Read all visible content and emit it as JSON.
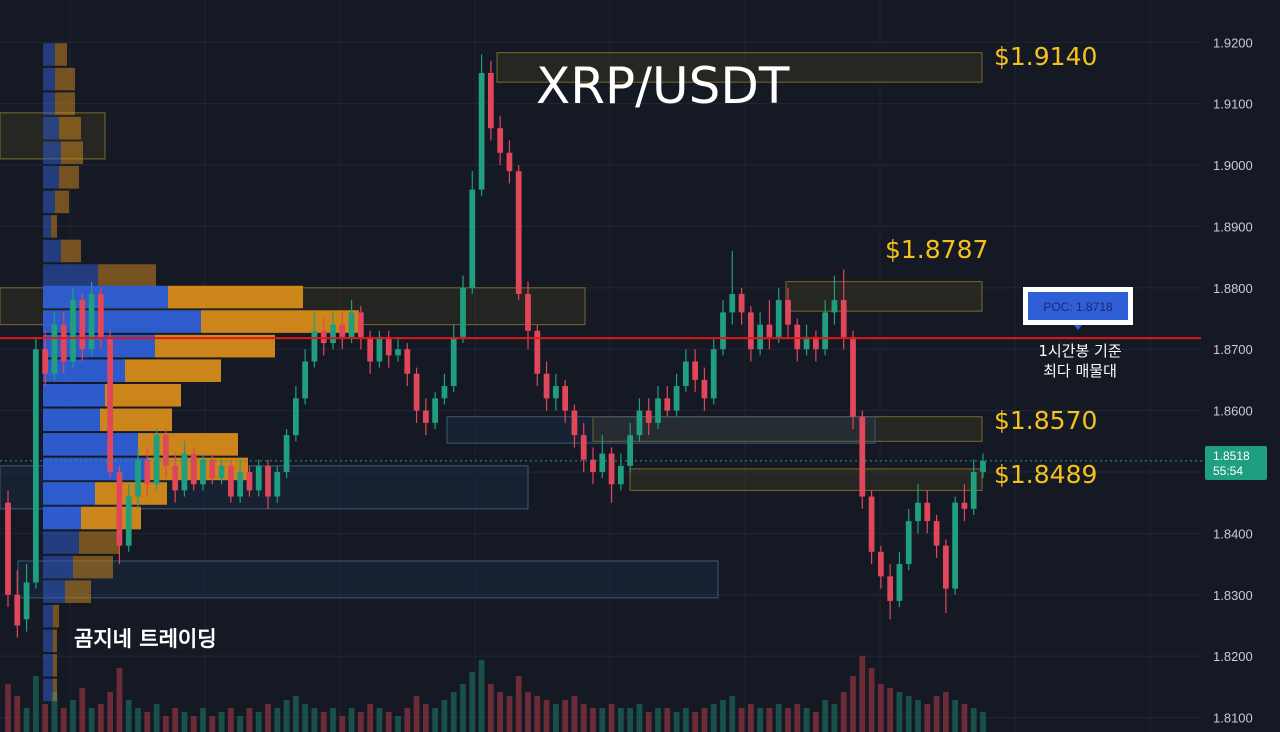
{
  "chart_data": {
    "type": "candlestick",
    "title": "XRP/USDT",
    "watermark": "곰지네 트레이딩",
    "y_ticks": [
      "1.9200",
      "1.9100",
      "1.9000",
      "1.8900",
      "1.8800",
      "1.8700",
      "1.8600",
      "1.8500",
      "1.8400",
      "1.8300",
      "1.8200",
      "1.8100"
    ],
    "ylim": [
      1.8096,
      1.9233
    ],
    "grid": true,
    "levels": [
      {
        "label": "$1.9140",
        "value": 1.914
      },
      {
        "label": "$1.8787",
        "value": 1.8787
      },
      {
        "label": "$1.8570",
        "value": 1.857
      },
      {
        "label": "$1.8489",
        "value": 1.8489
      }
    ],
    "poc": {
      "label": "POC: 1.8718",
      "value": 1.8718,
      "note_line1": "1시간봉 기준",
      "note_line2": "최다 매물대"
    },
    "current_price": {
      "price": "1.8518",
      "countdown": "55:54",
      "value": 1.8518
    },
    "candles": [
      [
        1.845,
        1.83,
        1.847,
        1.828
      ],
      [
        1.83,
        1.825,
        1.834,
        1.823
      ],
      [
        1.826,
        1.832,
        1.835,
        1.824
      ],
      [
        1.832,
        1.87,
        1.872,
        1.831
      ],
      [
        1.87,
        1.866,
        1.873,
        1.864
      ],
      [
        1.866,
        1.874,
        1.876,
        1.865
      ],
      [
        1.874,
        1.868,
        1.876,
        1.866
      ],
      [
        1.868,
        1.878,
        1.88,
        1.867
      ],
      [
        1.878,
        1.87,
        1.879,
        1.868
      ],
      [
        1.87,
        1.879,
        1.881,
        1.869
      ],
      [
        1.879,
        1.872,
        1.88,
        1.87
      ],
      [
        1.872,
        1.85,
        1.873,
        1.849
      ],
      [
        1.85,
        1.838,
        1.851,
        1.835
      ],
      [
        1.838,
        1.846,
        1.848,
        1.837
      ],
      [
        1.846,
        1.852,
        1.854,
        1.844
      ],
      [
        1.852,
        1.848,
        1.854,
        1.846
      ],
      [
        1.848,
        1.856,
        1.857,
        1.847
      ],
      [
        1.856,
        1.851,
        1.857,
        1.849
      ],
      [
        1.851,
        1.847,
        1.853,
        1.845
      ],
      [
        1.847,
        1.853,
        1.855,
        1.846
      ],
      [
        1.853,
        1.848,
        1.854,
        1.847
      ],
      [
        1.848,
        1.852,
        1.853,
        1.847
      ],
      [
        1.852,
        1.849,
        1.853,
        1.848
      ],
      [
        1.849,
        1.851,
        1.852,
        1.848
      ],
      [
        1.851,
        1.846,
        1.852,
        1.845
      ],
      [
        1.846,
        1.85,
        1.852,
        1.845
      ],
      [
        1.85,
        1.847,
        1.851,
        1.846
      ],
      [
        1.847,
        1.851,
        1.852,
        1.846
      ],
      [
        1.851,
        1.846,
        1.852,
        1.844
      ],
      [
        1.846,
        1.85,
        1.851,
        1.845
      ],
      [
        1.85,
        1.856,
        1.857,
        1.849
      ],
      [
        1.856,
        1.862,
        1.864,
        1.855
      ],
      [
        1.862,
        1.868,
        1.87,
        1.861
      ],
      [
        1.868,
        1.873,
        1.876,
        1.867
      ],
      [
        1.873,
        1.871,
        1.875,
        1.869
      ],
      [
        1.871,
        1.874,
        1.876,
        1.87
      ],
      [
        1.874,
        1.872,
        1.876,
        1.87
      ],
      [
        1.872,
        1.876,
        1.878,
        1.871
      ],
      [
        1.876,
        1.872,
        1.877,
        1.87
      ],
      [
        1.872,
        1.868,
        1.873,
        1.866
      ],
      [
        1.868,
        1.872,
        1.873,
        1.867
      ],
      [
        1.872,
        1.869,
        1.873,
        1.867
      ],
      [
        1.869,
        1.87,
        1.872,
        1.868
      ],
      [
        1.87,
        1.866,
        1.871,
        1.864
      ],
      [
        1.866,
        1.86,
        1.867,
        1.858
      ],
      [
        1.86,
        1.858,
        1.862,
        1.856
      ],
      [
        1.858,
        1.862,
        1.863,
        1.857
      ],
      [
        1.862,
        1.864,
        1.866,
        1.861
      ],
      [
        1.864,
        1.872,
        1.874,
        1.863
      ],
      [
        1.872,
        1.88,
        1.882,
        1.871
      ],
      [
        1.88,
        1.896,
        1.899,
        1.879
      ],
      [
        1.896,
        1.915,
        1.918,
        1.895
      ],
      [
        1.915,
        1.906,
        1.917,
        1.904
      ],
      [
        1.906,
        1.902,
        1.908,
        1.9
      ],
      [
        1.902,
        1.899,
        1.904,
        1.897
      ],
      [
        1.899,
        1.879,
        1.9,
        1.878
      ],
      [
        1.879,
        1.873,
        1.881,
        1.87
      ],
      [
        1.873,
        1.866,
        1.874,
        1.864
      ],
      [
        1.866,
        1.862,
        1.868,
        1.86
      ],
      [
        1.862,
        1.864,
        1.866,
        1.86
      ],
      [
        1.864,
        1.86,
        1.865,
        1.858
      ],
      [
        1.86,
        1.856,
        1.861,
        1.854
      ],
      [
        1.856,
        1.852,
        1.858,
        1.85
      ],
      [
        1.852,
        1.85,
        1.854,
        1.848
      ],
      [
        1.85,
        1.853,
        1.856,
        1.849
      ],
      [
        1.853,
        1.848,
        1.854,
        1.845
      ],
      [
        1.848,
        1.851,
        1.853,
        1.847
      ],
      [
        1.851,
        1.856,
        1.858,
        1.85
      ],
      [
        1.856,
        1.86,
        1.862,
        1.855
      ],
      [
        1.86,
        1.858,
        1.862,
        1.856
      ],
      [
        1.858,
        1.862,
        1.864,
        1.857
      ],
      [
        1.862,
        1.86,
        1.864,
        1.859
      ],
      [
        1.86,
        1.864,
        1.866,
        1.859
      ],
      [
        1.864,
        1.868,
        1.87,
        1.863
      ],
      [
        1.868,
        1.865,
        1.87,
        1.863
      ],
      [
        1.865,
        1.862,
        1.867,
        1.86
      ],
      [
        1.862,
        1.87,
        1.872,
        1.861
      ],
      [
        1.87,
        1.876,
        1.878,
        1.869
      ],
      [
        1.876,
        1.879,
        1.886,
        1.874
      ],
      [
        1.879,
        1.876,
        1.88,
        1.874
      ],
      [
        1.876,
        1.87,
        1.877,
        1.868
      ],
      [
        1.87,
        1.874,
        1.876,
        1.869
      ],
      [
        1.874,
        1.872,
        1.878,
        1.87
      ],
      [
        1.872,
        1.878,
        1.88,
        1.871
      ],
      [
        1.878,
        1.874,
        1.88,
        1.872
      ],
      [
        1.874,
        1.87,
        1.875,
        1.868
      ],
      [
        1.87,
        1.872,
        1.874,
        1.869
      ],
      [
        1.872,
        1.87,
        1.873,
        1.868
      ],
      [
        1.87,
        1.876,
        1.878,
        1.869
      ],
      [
        1.876,
        1.878,
        1.882,
        1.874
      ],
      [
        1.878,
        1.872,
        1.883,
        1.87
      ],
      [
        1.872,
        1.859,
        1.873,
        1.857
      ],
      [
        1.859,
        1.846,
        1.86,
        1.844
      ],
      [
        1.846,
        1.837,
        1.847,
        1.835
      ],
      [
        1.837,
        1.833,
        1.838,
        1.831
      ],
      [
        1.833,
        1.829,
        1.835,
        1.826
      ],
      [
        1.829,
        1.835,
        1.837,
        1.828
      ],
      [
        1.835,
        1.842,
        1.844,
        1.834
      ],
      [
        1.842,
        1.845,
        1.848,
        1.84
      ],
      [
        1.845,
        1.842,
        1.847,
        1.84
      ],
      [
        1.842,
        1.838,
        1.843,
        1.836
      ],
      [
        1.838,
        1.831,
        1.839,
        1.827
      ],
      [
        1.831,
        1.845,
        1.846,
        1.83
      ],
      [
        1.845,
        1.844,
        1.848,
        1.842
      ],
      [
        1.844,
        1.85,
        1.852,
        1.843
      ],
      [
        1.85,
        1.8518,
        1.853,
        1.849
      ]
    ],
    "volume": [
      0.6,
      0.45,
      0.3,
      0.7,
      0.35,
      0.5,
      0.3,
      0.4,
      0.55,
      0.3,
      0.35,
      0.5,
      0.8,
      0.4,
      0.3,
      0.25,
      0.35,
      0.2,
      0.3,
      0.25,
      0.2,
      0.3,
      0.2,
      0.25,
      0.3,
      0.2,
      0.3,
      0.25,
      0.35,
      0.3,
      0.4,
      0.45,
      0.35,
      0.3,
      0.25,
      0.3,
      0.2,
      0.3,
      0.25,
      0.35,
      0.3,
      0.25,
      0.2,
      0.3,
      0.45,
      0.35,
      0.3,
      0.4,
      0.5,
      0.6,
      0.75,
      0.9,
      0.6,
      0.5,
      0.45,
      0.7,
      0.5,
      0.45,
      0.4,
      0.35,
      0.4,
      0.45,
      0.35,
      0.3,
      0.3,
      0.35,
      0.3,
      0.3,
      0.35,
      0.25,
      0.3,
      0.3,
      0.25,
      0.3,
      0.25,
      0.3,
      0.35,
      0.4,
      0.45,
      0.3,
      0.35,
      0.3,
      0.3,
      0.35,
      0.3,
      0.35,
      0.3,
      0.25,
      0.4,
      0.35,
      0.5,
      0.7,
      0.95,
      0.8,
      0.6,
      0.55,
      0.5,
      0.45,
      0.4,
      0.35,
      0.45,
      0.5,
      0.4,
      0.35,
      0.3,
      0.25
    ]
  },
  "colors": {
    "background": "#151924",
    "up": "#1f9e80",
    "down": "#e0475a",
    "poc_line": "#e01818",
    "level_text": "#f4c21c",
    "profile_blue": "#2f5fd6",
    "profile_orange": "#d68b1a",
    "price_tag": "#1f9e80"
  }
}
